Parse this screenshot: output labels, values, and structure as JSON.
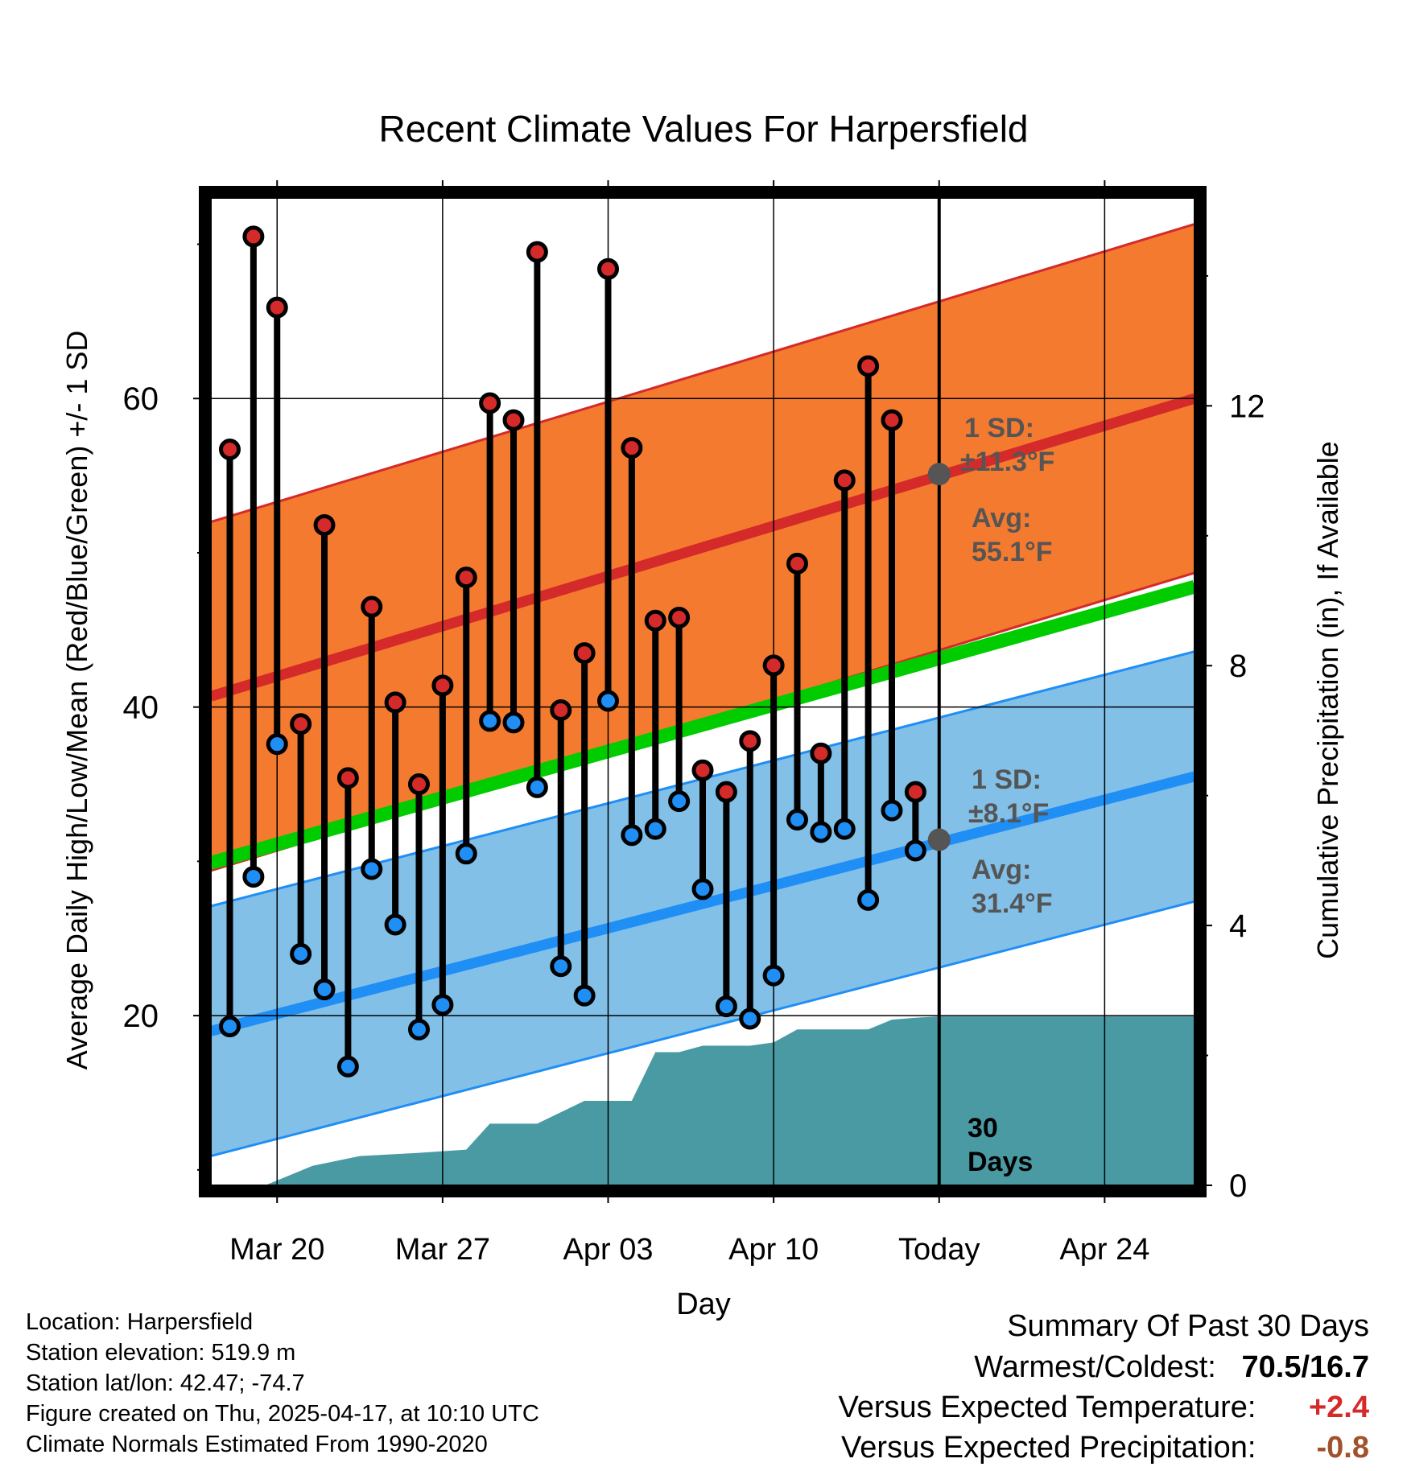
{
  "colors": {
    "high_band": "#f47a2f",
    "high_line": "#d42a2a",
    "low_band": "#82c0e8",
    "low_line": "#1f8ef5",
    "mean_line": "#00cc00",
    "precip": "#4a9aa4",
    "high_marker": "#d42a2a",
    "low_marker": "#1f8ef5",
    "avg_marker": "#555555",
    "annotation": "#555555",
    "temp_anomaly": "#d42a2a",
    "precip_anomaly": "#a0522d"
  },
  "chart_data": {
    "type": "line",
    "title": "Recent Climate Values For Harpersfield",
    "xlabel": "Day",
    "ylabel": "Average Daily High/Low/Mean (Red/Blue/Green) +/- 1 SD",
    "y2label": "Cumulative Precipitation (in), If Available",
    "xlim": [
      -0.8,
      40.8
    ],
    "ylim": [
      9,
      73
    ],
    "y2lim": [
      0,
      15.2
    ],
    "x_ticks": [
      {
        "x": 2,
        "label": "Mar 20"
      },
      {
        "x": 9,
        "label": "Mar 27"
      },
      {
        "x": 16,
        "label": "Apr 03"
      },
      {
        "x": 23,
        "label": "Apr 10"
      },
      {
        "x": 30,
        "label": "Today"
      },
      {
        "x": 37,
        "label": "Apr 24"
      }
    ],
    "y_ticks": [
      20,
      40,
      60
    ],
    "y2_ticks": [
      0,
      4,
      8,
      12
    ],
    "today_x": 30,
    "days": [
      {
        "x": 0,
        "high": 56.7,
        "low": 19.3
      },
      {
        "x": 1,
        "high": 70.5,
        "low": 29.0
      },
      {
        "x": 2,
        "high": 65.9,
        "low": 37.6
      },
      {
        "x": 3,
        "high": 38.9,
        "low": 24.0
      },
      {
        "x": 4,
        "high": 51.8,
        "low": 21.7
      },
      {
        "x": 5,
        "high": 35.4,
        "low": 16.7
      },
      {
        "x": 6,
        "high": 46.5,
        "low": 29.5
      },
      {
        "x": 7,
        "high": 40.3,
        "low": 25.9
      },
      {
        "x": 8,
        "high": 35.0,
        "low": 19.1
      },
      {
        "x": 9,
        "high": 41.4,
        "low": 20.7
      },
      {
        "x": 10,
        "high": 48.4,
        "low": 30.5
      },
      {
        "x": 11,
        "high": 59.7,
        "low": 39.1
      },
      {
        "x": 12,
        "high": 58.6,
        "low": 39.0
      },
      {
        "x": 13,
        "high": 69.5,
        "low": 34.8
      },
      {
        "x": 14,
        "high": 39.8,
        "low": 23.2
      },
      {
        "x": 15,
        "high": 43.5,
        "low": 21.3
      },
      {
        "x": 16,
        "high": 68.4,
        "low": 40.4
      },
      {
        "x": 17,
        "high": 56.8,
        "low": 31.7
      },
      {
        "x": 18,
        "high": 45.6,
        "low": 32.1
      },
      {
        "x": 19,
        "high": 45.8,
        "low": 33.9
      },
      {
        "x": 20,
        "high": 35.9,
        "low": 28.2
      },
      {
        "x": 21,
        "high": 34.5,
        "low": 20.6
      },
      {
        "x": 22,
        "high": 37.8,
        "low": 19.8
      },
      {
        "x": 23,
        "high": 42.7,
        "low": 22.6
      },
      {
        "x": 24,
        "high": 49.3,
        "low": 32.7
      },
      {
        "x": 25,
        "high": 37.0,
        "low": 31.9
      },
      {
        "x": 26,
        "high": 54.7,
        "low": 32.1
      },
      {
        "x": 27,
        "high": 62.1,
        "low": 27.5
      },
      {
        "x": 28,
        "high": 58.6,
        "low": 33.3
      },
      {
        "x": 29,
        "high": 34.5,
        "low": 30.7
      }
    ],
    "normals": {
      "x": [
        -0.8,
        40.8
      ],
      "high_mean": [
        40.7,
        60.0
      ],
      "high_sd": 11.3,
      "low_mean": [
        19.0,
        35.5
      ],
      "low_sd": 8.1,
      "mean": [
        29.9,
        47.8
      ]
    },
    "precip_cumulative": {
      "x": [
        -0.8,
        1.5,
        2.5,
        3.5,
        5.5,
        8,
        10,
        11,
        13,
        15,
        16,
        17,
        18,
        19,
        20,
        22,
        23,
        24,
        25,
        27,
        28,
        29,
        30,
        40.8
      ],
      "values": [
        0,
        0,
        0.15,
        0.3,
        0.45,
        0.5,
        0.55,
        0.95,
        0.95,
        1.3,
        1.3,
        1.3,
        2.05,
        2.05,
        2.15,
        2.15,
        2.2,
        2.4,
        2.4,
        2.4,
        2.55,
        2.58,
        2.6,
        2.6
      ]
    },
    "high_label": {
      "line1": "1 SD:",
      "line2": "±11.3°F",
      "avg1": "Avg:",
      "avg2": "55.1°F",
      "avg_value": 55.1
    },
    "low_label": {
      "line1": "1 SD:",
      "line2": "±8.1°F",
      "avg1": "Avg:",
      "avg2": "31.4°F",
      "avg_value": 31.4
    },
    "period_label": {
      "line1": "30",
      "line2": "Days"
    }
  },
  "info": {
    "location": "Location: Harpersfield",
    "elevation": "Station elevation: 519.9 m",
    "latlon": "Station lat/lon: 42.47; -74.7",
    "created": "Figure created on Thu, 2025-04-17, at 10:10 UTC",
    "normals": "Climate Normals Estimated From 1990-2020"
  },
  "summary": {
    "title": "Summary Of Past 30 Days",
    "warm_cold_label": "Warmest/Coldest:",
    "warm_cold_value": "70.5/16.7",
    "temp_label": "Versus Expected Temperature:",
    "temp_value": "+2.4",
    "precip_label": "Versus Expected Precipitation:",
    "precip_value": "-0.8"
  }
}
